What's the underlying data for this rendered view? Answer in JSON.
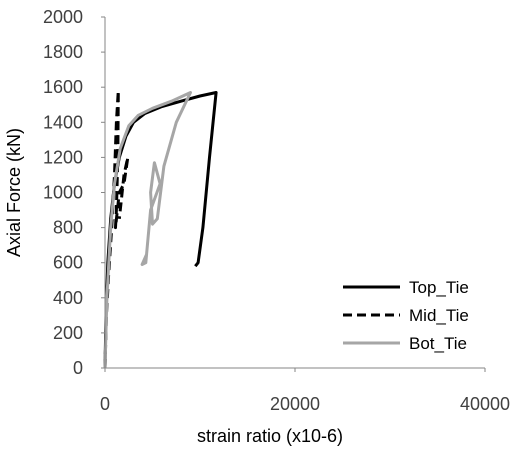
{
  "chart_data": {
    "type": "line",
    "title": "",
    "xlabel": "strain ratio (x10-6)",
    "ylabel": "Axial Force (kN)",
    "xlim": [
      0,
      40000
    ],
    "ylim": [
      0,
      2000
    ],
    "x_ticks": [
      0,
      20000,
      40000
    ],
    "y_ticks": [
      0,
      200,
      400,
      600,
      800,
      1000,
      1200,
      1400,
      1600,
      1800,
      2000
    ],
    "grid": false,
    "legend_position": "bottom-right",
    "series": [
      {
        "name": "Top_Tie",
        "color": "#000000",
        "dash": "solid",
        "points": [
          [
            0,
            0
          ],
          [
            100,
            300
          ],
          [
            300,
            600
          ],
          [
            600,
            850
          ],
          [
            1000,
            1050
          ],
          [
            1500,
            1200
          ],
          [
            2200,
            1320
          ],
          [
            3000,
            1400
          ],
          [
            4200,
            1450
          ],
          [
            6000,
            1490
          ],
          [
            8000,
            1520
          ],
          [
            10000,
            1550
          ],
          [
            11700,
            1570
          ],
          [
            11000,
            1200
          ],
          [
            10300,
            800
          ],
          [
            9800,
            600
          ],
          [
            9500,
            580
          ]
        ]
      },
      {
        "name": "Mid_Tie",
        "color": "#000000",
        "dash": "dashed",
        "points": [
          [
            0,
            0
          ],
          [
            150,
            300
          ],
          [
            400,
            550
          ],
          [
            700,
            800
          ],
          [
            1000,
            1100
          ],
          [
            1200,
            1400
          ],
          [
            1400,
            1580
          ],
          [
            1350,
            1200
          ],
          [
            1200,
            900
          ],
          [
            1100,
            800
          ],
          [
            1500,
            1000
          ],
          [
            2000,
            1050
          ],
          [
            2400,
            1200
          ],
          [
            2000,
            1100
          ],
          [
            1700,
            950
          ],
          [
            1500,
            850
          ]
        ]
      },
      {
        "name": "Bot_Tie",
        "color": "#a6a6a6",
        "dash": "solid",
        "points": [
          [
            0,
            0
          ],
          [
            200,
            400
          ],
          [
            600,
            800
          ],
          [
            1000,
            1050
          ],
          [
            1600,
            1250
          ],
          [
            2500,
            1380
          ],
          [
            3500,
            1440
          ],
          [
            5000,
            1480
          ],
          [
            7000,
            1520
          ],
          [
            9000,
            1570
          ],
          [
            7500,
            1400
          ],
          [
            6200,
            1150
          ],
          [
            5500,
            850
          ],
          [
            5000,
            820
          ],
          [
            4800,
            1000
          ],
          [
            5200,
            1170
          ],
          [
            5800,
            1050
          ],
          [
            4800,
            900
          ],
          [
            4300,
            600
          ],
          [
            3900,
            590
          ],
          [
            4400,
            650
          ]
        ]
      }
    ]
  }
}
